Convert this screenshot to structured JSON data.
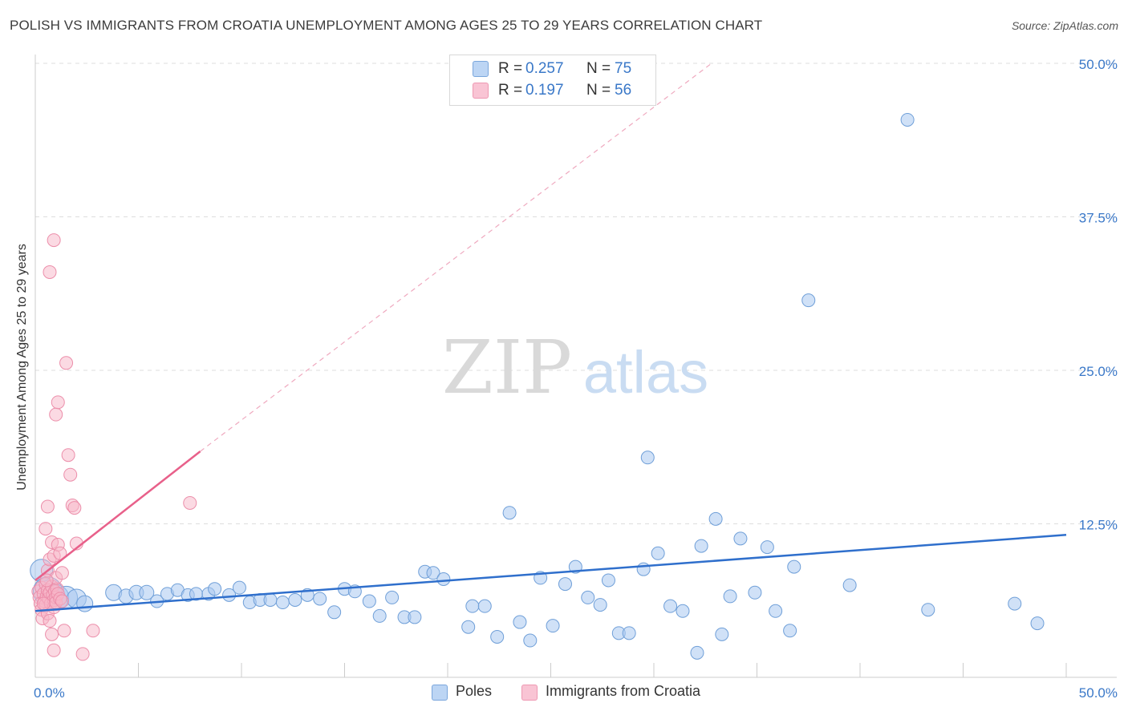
{
  "title": "POLISH VS IMMIGRANTS FROM CROATIA UNEMPLOYMENT AMONG AGES 25 TO 29 YEARS CORRELATION CHART",
  "source": "Source: ZipAtlas.com",
  "watermark": {
    "zip": "ZIP",
    "atlas": "atlas"
  },
  "legend": {
    "rows": [
      {
        "r_label": "R =",
        "r_value": "0.257",
        "n_label": "N =",
        "n_value": "75"
      },
      {
        "r_label": "R =",
        "r_value": "0.197",
        "n_label": "N =",
        "n_value": "56"
      }
    ]
  },
  "bottom_legend": {
    "poles": "Poles",
    "croatia": "Immigrants from Croatia"
  },
  "colors": {
    "poles_fill": "#aac8f0",
    "poles_stroke": "#6f9fd8",
    "poles_line": "#2f6fcc",
    "croatia_fill": "#f7b6c8",
    "croatia_stroke": "#ec8eaa",
    "croatia_line": "#e8608a",
    "axis_text": "#3a78c8",
    "grid": "#dddddd"
  },
  "chart_data": {
    "type": "scatter",
    "title": "POLISH VS IMMIGRANTS FROM CROATIA UNEMPLOYMENT AMONG AGES 25 TO 29 YEARS CORRELATION CHART",
    "xlabel": "",
    "ylabel": "Unemployment Among Ages 25 to 29 years",
    "xlim": [
      0,
      50
    ],
    "ylim": [
      0,
      50
    ],
    "x_tick_labels": [
      "0.0%",
      "50.0%"
    ],
    "y_ticks": [
      12.5,
      25.0,
      37.5,
      50.0
    ],
    "y_tick_labels": [
      "12.5%",
      "25.0%",
      "37.5%",
      "50.0%"
    ],
    "series": [
      {
        "name": "Poles",
        "r": 0.257,
        "n": 75,
        "trend": {
          "x": [
            0,
            50
          ],
          "y": [
            5.4,
            11.6
          ]
        },
        "points": [
          [
            0.3,
            8.7,
            14
          ],
          [
            0.6,
            7.0,
            18
          ],
          [
            1.0,
            6.5,
            16
          ],
          [
            1.5,
            6.5,
            14
          ],
          [
            2.0,
            6.4,
            12
          ],
          [
            2.4,
            6.0,
            10
          ],
          [
            3.8,
            6.9,
            10
          ],
          [
            4.4,
            6.6,
            9
          ],
          [
            4.9,
            6.9,
            9
          ],
          [
            5.4,
            6.9,
            9
          ],
          [
            5.9,
            6.2,
            8
          ],
          [
            6.4,
            6.8,
            8
          ],
          [
            6.9,
            7.1,
            8
          ],
          [
            7.4,
            6.7,
            8
          ],
          [
            7.8,
            6.8,
            8
          ],
          [
            8.4,
            6.8,
            8
          ],
          [
            8.7,
            7.2,
            8
          ],
          [
            9.4,
            6.7,
            8
          ],
          [
            9.9,
            7.3,
            8
          ],
          [
            10.4,
            6.1,
            8
          ],
          [
            10.9,
            6.3,
            8
          ],
          [
            11.4,
            6.3,
            8
          ],
          [
            12.0,
            6.1,
            8
          ],
          [
            12.6,
            6.3,
            8
          ],
          [
            13.2,
            6.7,
            8
          ],
          [
            13.8,
            6.4,
            8
          ],
          [
            14.5,
            5.3,
            8
          ],
          [
            15.0,
            7.2,
            8
          ],
          [
            15.5,
            7.0,
            8
          ],
          [
            16.2,
            6.2,
            8
          ],
          [
            16.7,
            5.0,
            8
          ],
          [
            17.3,
            6.5,
            8
          ],
          [
            17.9,
            4.9,
            8
          ],
          [
            18.4,
            4.9,
            8
          ],
          [
            18.9,
            8.6,
            8
          ],
          [
            19.3,
            8.5,
            8
          ],
          [
            19.8,
            8.0,
            8
          ],
          [
            21.0,
            4.1,
            8
          ],
          [
            21.2,
            5.8,
            8
          ],
          [
            21.8,
            5.8,
            8
          ],
          [
            22.4,
            3.3,
            8
          ],
          [
            23.0,
            13.4,
            8
          ],
          [
            23.5,
            4.5,
            8
          ],
          [
            24.0,
            3.0,
            8
          ],
          [
            24.5,
            8.1,
            8
          ],
          [
            25.1,
            4.2,
            8
          ],
          [
            25.7,
            7.6,
            8
          ],
          [
            26.2,
            9.0,
            8
          ],
          [
            26.8,
            6.5,
            8
          ],
          [
            27.4,
            5.9,
            8
          ],
          [
            27.8,
            7.9,
            8
          ],
          [
            28.3,
            3.6,
            8
          ],
          [
            28.8,
            3.6,
            8
          ],
          [
            29.5,
            8.8,
            8
          ],
          [
            29.7,
            17.9,
            8
          ],
          [
            30.2,
            10.1,
            8
          ],
          [
            30.8,
            5.8,
            8
          ],
          [
            31.4,
            5.4,
            8
          ],
          [
            32.1,
            2.0,
            8
          ],
          [
            32.3,
            10.7,
            8
          ],
          [
            33.0,
            12.9,
            8
          ],
          [
            33.3,
            3.5,
            8
          ],
          [
            33.7,
            6.6,
            8
          ],
          [
            34.2,
            11.3,
            8
          ],
          [
            34.9,
            6.9,
            8
          ],
          [
            35.5,
            10.6,
            8
          ],
          [
            35.9,
            5.4,
            8
          ],
          [
            36.6,
            3.8,
            8
          ],
          [
            36.8,
            9.0,
            8
          ],
          [
            37.5,
            30.7,
            8
          ],
          [
            39.5,
            7.5,
            8
          ],
          [
            42.3,
            45.4,
            8
          ],
          [
            43.3,
            5.5,
            8
          ],
          [
            47.5,
            6.0,
            8
          ],
          [
            48.6,
            4.4,
            8
          ]
        ]
      },
      {
        "name": "Immigrants from Croatia",
        "r": 0.197,
        "n": 56,
        "trend": {
          "x": [
            0,
            8.0
          ],
          "y": [
            7.9,
            18.4
          ]
        },
        "trend_extension": {
          "x": [
            8.0,
            32.8
          ],
          "y": [
            18.4,
            50.0
          ]
        },
        "points": [
          [
            0.15,
            7.0,
            8
          ],
          [
            0.2,
            6.5,
            8
          ],
          [
            0.25,
            6.0,
            8
          ],
          [
            0.3,
            5.5,
            8
          ],
          [
            0.3,
            7.3,
            8
          ],
          [
            0.35,
            4.8,
            8
          ],
          [
            0.4,
            6.8,
            8
          ],
          [
            0.45,
            6.2,
            8
          ],
          [
            0.5,
            7.6,
            8
          ],
          [
            0.5,
            5.9,
            8
          ],
          [
            0.55,
            6.6,
            8
          ],
          [
            0.6,
            7.1,
            8
          ],
          [
            0.6,
            5.2,
            8
          ],
          [
            0.65,
            6.4,
            8
          ],
          [
            0.7,
            6.9,
            8
          ],
          [
            0.7,
            4.6,
            8
          ],
          [
            0.75,
            6.0,
            8
          ],
          [
            0.8,
            7.4,
            8
          ],
          [
            0.85,
            6.7,
            8
          ],
          [
            0.9,
            6.3,
            8
          ],
          [
            0.9,
            5.7,
            8
          ],
          [
            0.95,
            7.0,
            8
          ],
          [
            1.0,
            6.5,
            8
          ],
          [
            1.0,
            6.1,
            8
          ],
          [
            1.05,
            7.2,
            8
          ],
          [
            1.1,
            6.8,
            8
          ],
          [
            1.2,
            6.4,
            8
          ],
          [
            0.5,
            12.1,
            8
          ],
          [
            0.6,
            13.9,
            8
          ],
          [
            0.6,
            8.7,
            8
          ],
          [
            0.7,
            9.6,
            8
          ],
          [
            0.8,
            11.0,
            8
          ],
          [
            0.9,
            9.9,
            8
          ],
          [
            1.0,
            8.1,
            8
          ],
          [
            1.1,
            10.8,
            8
          ],
          [
            1.2,
            10.1,
            8
          ],
          [
            1.3,
            8.5,
            8
          ],
          [
            0.7,
            33.0,
            8
          ],
          [
            0.9,
            35.6,
            8
          ],
          [
            1.0,
            21.4,
            8
          ],
          [
            1.1,
            22.4,
            8
          ],
          [
            1.5,
            25.6,
            8
          ],
          [
            1.6,
            18.1,
            8
          ],
          [
            1.7,
            16.5,
            8
          ],
          [
            1.8,
            14.0,
            8
          ],
          [
            1.9,
            13.8,
            8
          ],
          [
            2.0,
            10.9,
            8
          ],
          [
            0.8,
            3.5,
            8
          ],
          [
            0.9,
            2.2,
            8
          ],
          [
            1.4,
            3.8,
            8
          ],
          [
            2.3,
            1.9,
            8
          ],
          [
            2.8,
            3.8,
            8
          ],
          [
            7.5,
            14.2,
            8
          ],
          [
            0.4,
            6.0,
            8
          ],
          [
            0.55,
            7.9,
            8
          ],
          [
            1.3,
            6.2,
            8
          ]
        ]
      }
    ]
  }
}
